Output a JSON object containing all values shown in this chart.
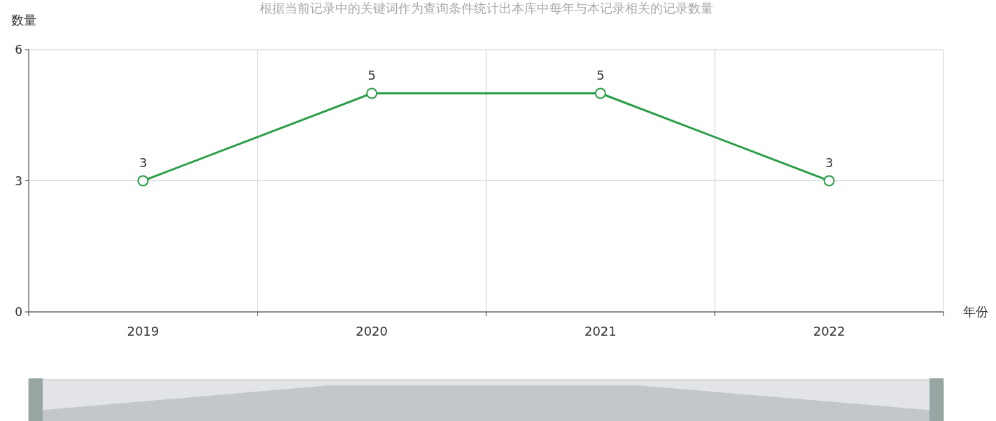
{
  "chart_data": {
    "type": "line",
    "title": "根据当前记录中的关键词作为查询条件统计出本库中每年与本记录相关的记录数量",
    "xlabel": "年份",
    "ylabel": "数量",
    "categories": [
      "2019",
      "2020",
      "2021",
      "2022"
    ],
    "series": [
      {
        "color": "#2a9d47",
        "values": [
          3,
          5,
          5,
          3
        ]
      }
    ],
    "ylim": [
      0,
      6
    ],
    "yticks": [
      0,
      3,
      6
    ],
    "grid": true,
    "data_labels": true,
    "marker": "circle",
    "line_style": "solid"
  }
}
